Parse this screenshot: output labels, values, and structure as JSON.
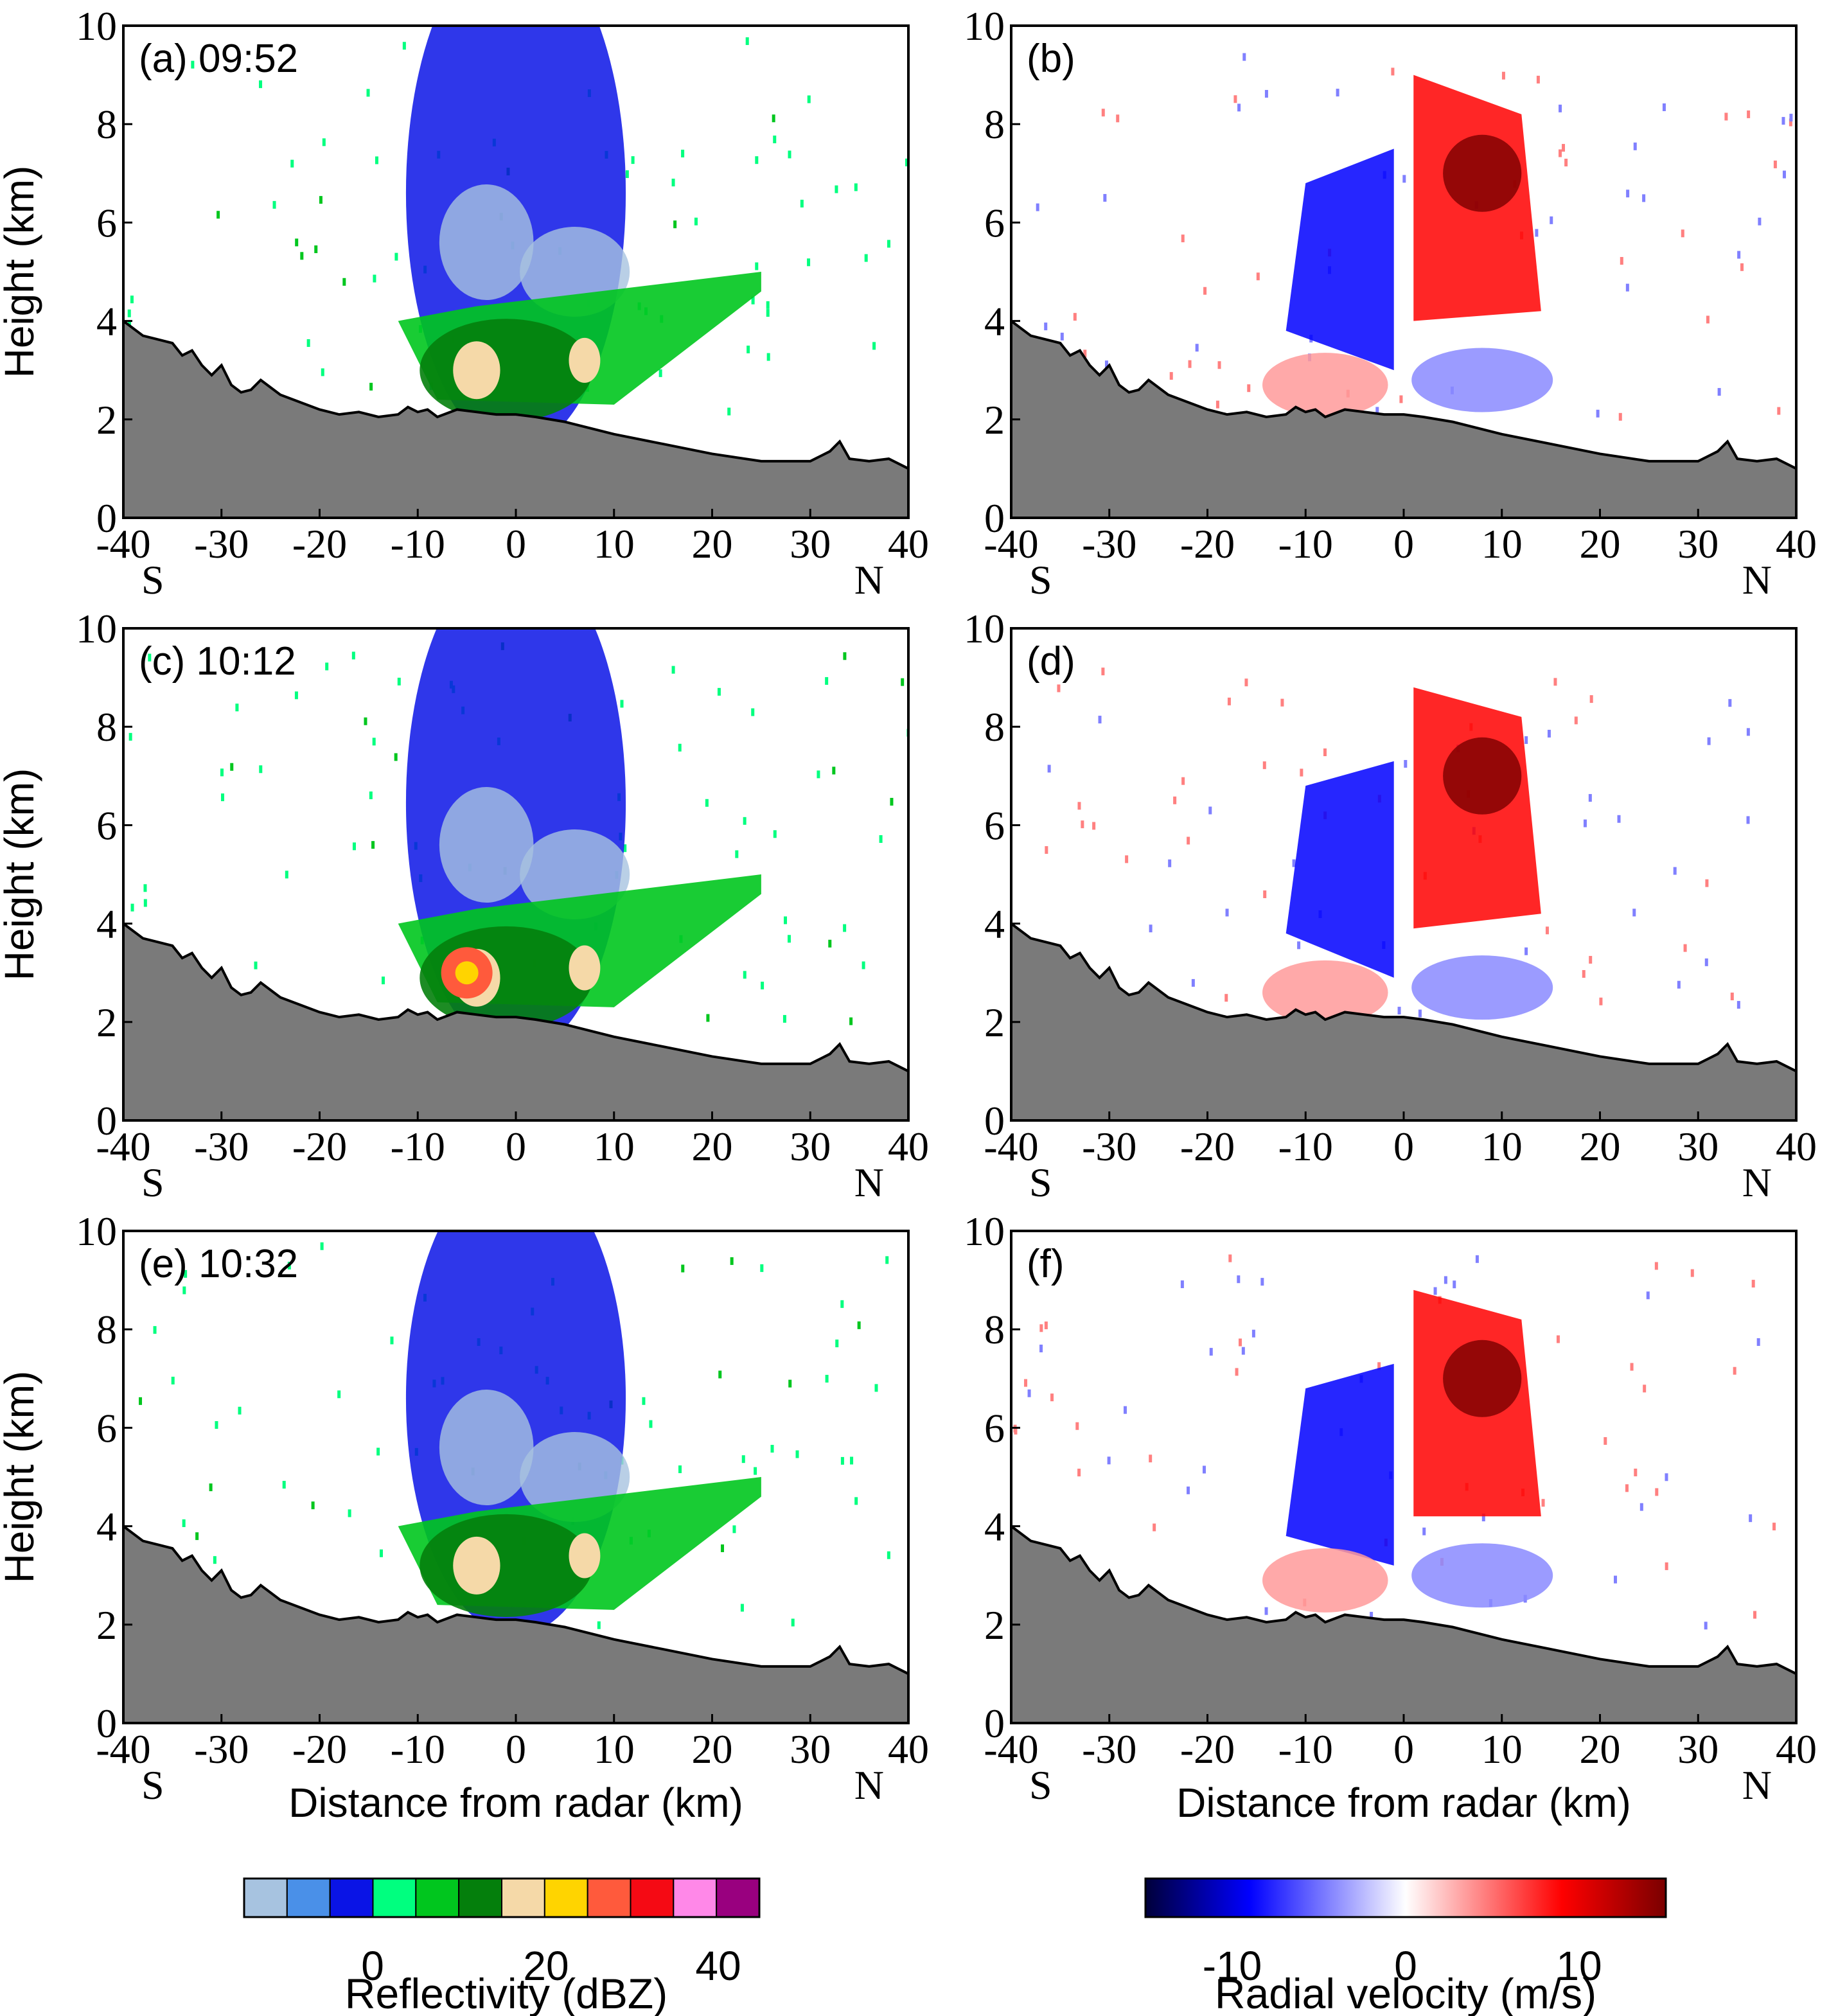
{
  "colors": {
    "terrain": "#7a7a7a",
    "reflectivity_scale": [
      "#a7c3e0",
      "#4a90e8",
      "#0a14e6",
      "#00ff7f",
      "#00c61e",
      "#047f0c",
      "#f5d9a8",
      "#ffd400",
      "#ff5a3c",
      "#f50a14",
      "#ff88e8",
      "#99007f"
    ],
    "velocity_scale": [
      "#00003a",
      "#0000ff",
      "#ffffff",
      "#ff0000",
      "#7a0000"
    ]
  },
  "chart_data": [
    {
      "id": "a",
      "type": "heatmap",
      "field": "reflectivity",
      "label": "(a) 09:52",
      "title": "",
      "xlabel": "",
      "ylabel": "Height (km)",
      "xlim": [
        -40,
        40
      ],
      "ylim": [
        0,
        10
      ],
      "xticks": [
        "-40",
        "-30",
        "-20",
        "-10",
        "0",
        "10",
        "20",
        "30",
        "40"
      ],
      "yticks": [
        "0",
        "2",
        "4",
        "6",
        "8",
        "10"
      ],
      "dir_left": "S",
      "dir_right": "N",
      "echo": {
        "top_km": 9.0,
        "core_km": 3.0
      }
    },
    {
      "id": "b",
      "type": "heatmap",
      "field": "velocity",
      "label": "(b)",
      "title": "",
      "xlabel": "",
      "ylabel": "",
      "xlim": [
        -40,
        40
      ],
      "ylim": [
        0,
        10
      ],
      "xticks": [
        "-40",
        "-30",
        "-20",
        "-10",
        "0",
        "10",
        "20",
        "30",
        "40"
      ],
      "yticks": [
        "0",
        "2",
        "4",
        "6",
        "8",
        "10"
      ],
      "dir_left": "S",
      "dir_right": "N",
      "echo": {
        "top_km": 9.0,
        "core_km": 3.0
      }
    },
    {
      "id": "c",
      "type": "heatmap",
      "field": "reflectivity",
      "label": "(c) 10:12",
      "title": "",
      "xlabel": "",
      "ylabel": "Height (km)",
      "xlim": [
        -40,
        40
      ],
      "ylim": [
        0,
        10
      ],
      "xticks": [
        "-40",
        "-30",
        "-20",
        "-10",
        "0",
        "10",
        "20",
        "30",
        "40"
      ],
      "yticks": [
        "0",
        "2",
        "4",
        "6",
        "8",
        "10"
      ],
      "dir_left": "S",
      "dir_right": "N",
      "echo": {
        "top_km": 8.8,
        "core_km": 2.9
      }
    },
    {
      "id": "d",
      "type": "heatmap",
      "field": "velocity",
      "label": "(d)",
      "title": "",
      "xlabel": "",
      "ylabel": "",
      "xlim": [
        -40,
        40
      ],
      "ylim": [
        0,
        10
      ],
      "xticks": [
        "-40",
        "-30",
        "-20",
        "-10",
        "0",
        "10",
        "20",
        "30",
        "40"
      ],
      "yticks": [
        "0",
        "2",
        "4",
        "6",
        "8",
        "10"
      ],
      "dir_left": "S",
      "dir_right": "N",
      "echo": {
        "top_km": 8.8,
        "core_km": 2.9
      }
    },
    {
      "id": "e",
      "type": "heatmap",
      "field": "reflectivity",
      "label": "(e) 10:32",
      "title": "",
      "xlabel": "Distance from radar (km)",
      "ylabel": "Height (km)",
      "xlim": [
        -40,
        40
      ],
      "ylim": [
        0,
        10
      ],
      "xticks": [
        "-40",
        "-30",
        "-20",
        "-10",
        "0",
        "10",
        "20",
        "30",
        "40"
      ],
      "yticks": [
        "0",
        "2",
        "4",
        "6",
        "8",
        "10"
      ],
      "dir_left": "S",
      "dir_right": "N",
      "echo": {
        "top_km": 8.8,
        "core_km": 3.2
      }
    },
    {
      "id": "f",
      "type": "heatmap",
      "field": "velocity",
      "label": "(f)",
      "title": "",
      "xlabel": "Distance from radar (km)",
      "ylabel": "",
      "xlim": [
        -40,
        40
      ],
      "ylim": [
        0,
        10
      ],
      "xticks": [
        "-40",
        "-30",
        "-20",
        "-10",
        "0",
        "10",
        "20",
        "30",
        "40"
      ],
      "yticks": [
        "0",
        "2",
        "4",
        "6",
        "8",
        "10"
      ],
      "dir_left": "S",
      "dir_right": "N",
      "echo": {
        "top_km": 8.8,
        "core_km": 3.2
      }
    }
  ],
  "terrain_profile": {
    "x_km": [
      -40,
      -38,
      -36,
      -35,
      -34,
      -33,
      -32,
      -31,
      -30,
      -29,
      -28,
      -27,
      -26,
      -24,
      -22,
      -20,
      -18,
      -16,
      -14,
      -12,
      -11,
      -10,
      -9,
      -8,
      -6,
      -4,
      -2,
      0,
      2,
      5,
      10,
      15,
      20,
      25,
      30,
      31,
      32,
      33,
      34,
      36,
      38,
      40
    ],
    "height_km": [
      4.0,
      3.7,
      3.6,
      3.55,
      3.3,
      3.4,
      3.1,
      2.9,
      3.1,
      2.7,
      2.55,
      2.6,
      2.8,
      2.5,
      2.35,
      2.2,
      2.1,
      2.15,
      2.05,
      2.1,
      2.25,
      2.15,
      2.2,
      2.05,
      2.2,
      2.15,
      2.1,
      2.1,
      2.05,
      1.95,
      1.7,
      1.5,
      1.3,
      1.15,
      1.15,
      1.25,
      1.35,
      1.55,
      1.2,
      1.15,
      1.2,
      1.0
    ]
  },
  "colorbars": {
    "reflectivity": {
      "label": "Reflectivity (dBZ)",
      "ticks": [
        "0",
        "20",
        "40"
      ],
      "tick_values": [
        0,
        20,
        40
      ],
      "range": [
        -15,
        45
      ],
      "bins": 12
    },
    "velocity": {
      "label": "Radial velocity (m/s)",
      "ticks": [
        "-10",
        "0",
        "10"
      ],
      "tick_values": [
        -10,
        0,
        10
      ],
      "range": [
        -15,
        15
      ]
    }
  }
}
